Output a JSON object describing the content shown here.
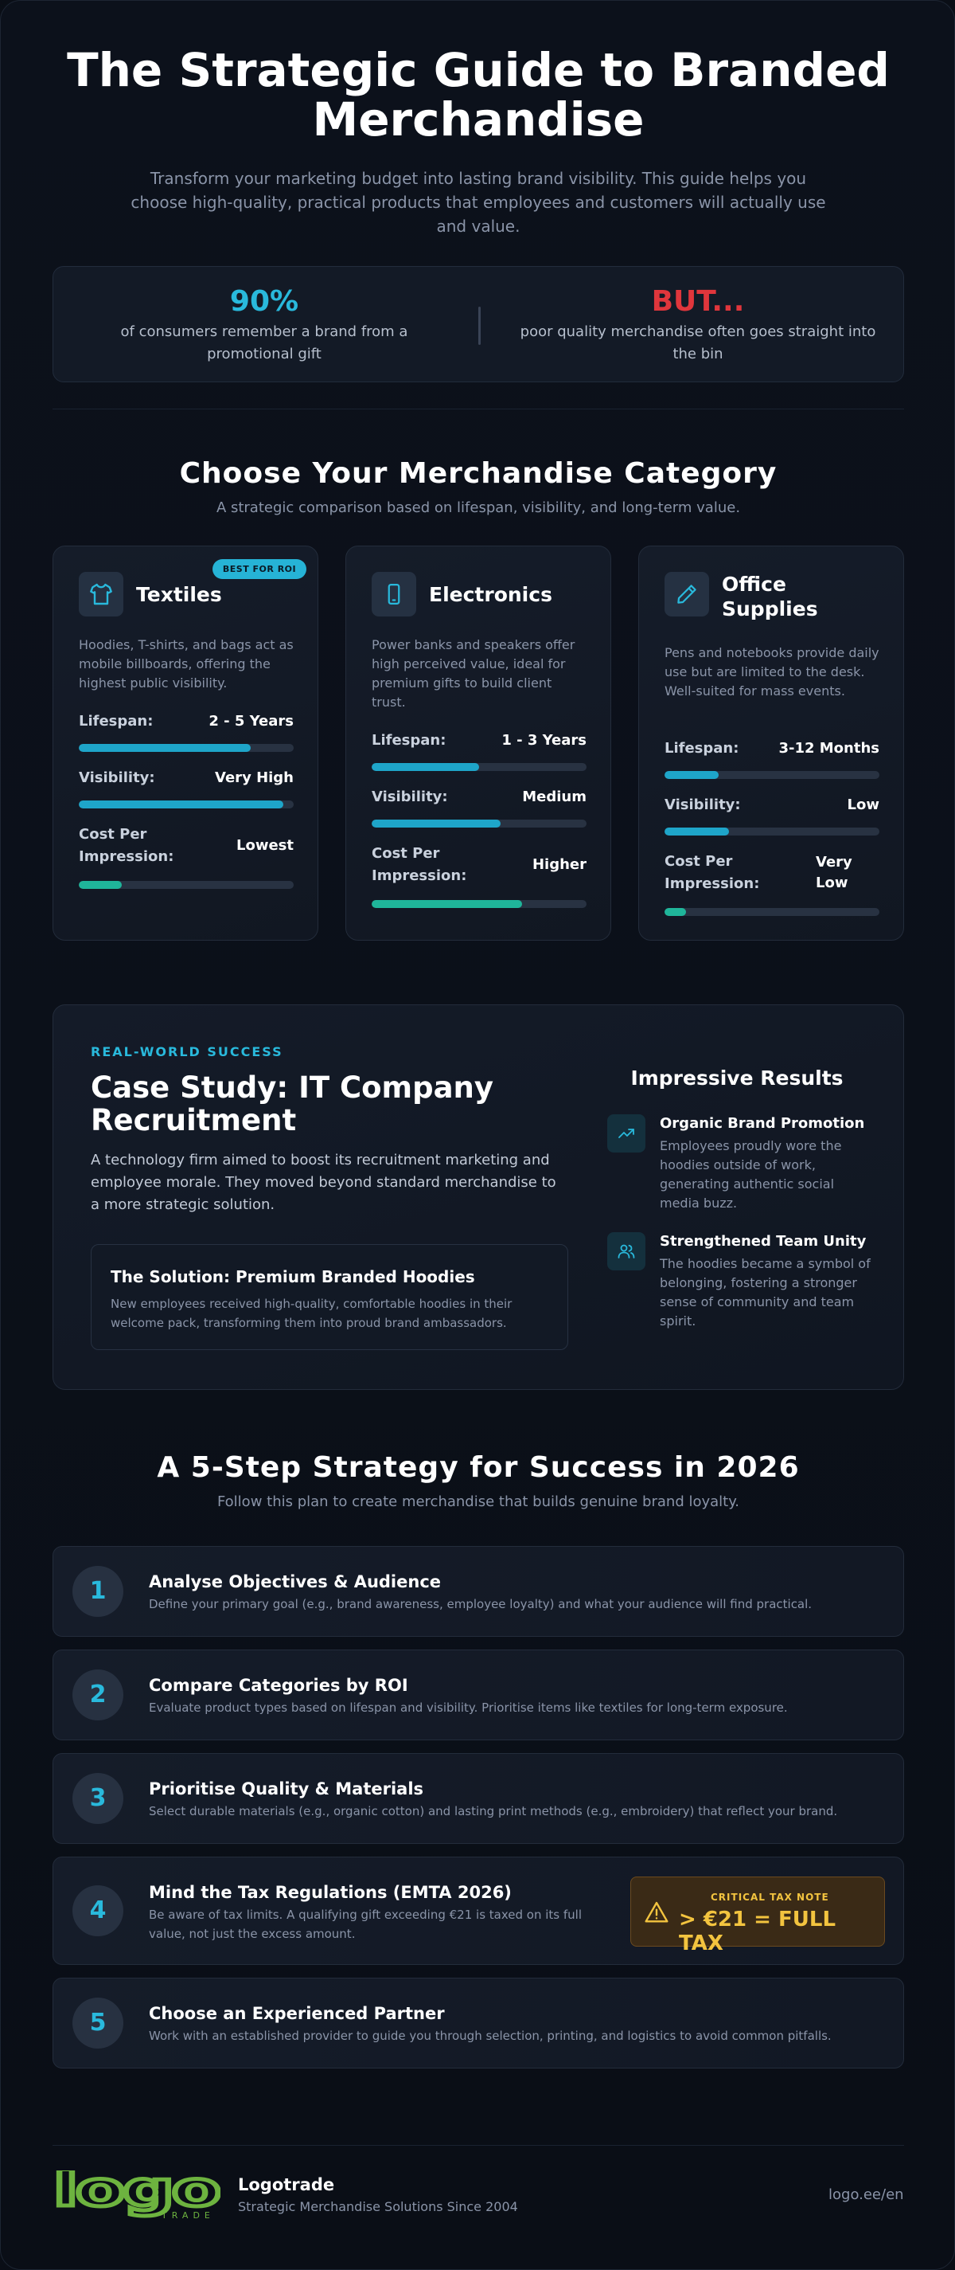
{
  "hero": {
    "title_line1": "The Strategic Guide to Branded",
    "title_line2": "Merchandise",
    "subtitle": "Transform your marketing budget into lasting brand visibility. This guide helps you choose high-quality, practical products that employees and customers will actually use and value."
  },
  "stats": [
    {
      "value": "90%",
      "text": "of consumers remember a brand from a promotional gift",
      "color": "#29b9dc"
    },
    {
      "value": "BUT...",
      "text": "poor quality merchandise often goes straight into the bin",
      "color": "#e0363c"
    }
  ],
  "categories_section": {
    "title": "Choose Your Merchandise Category",
    "subtitle": "A strategic comparison based on lifespan, visibility, and long-term value."
  },
  "categories": [
    {
      "icon": "tshirt-icon",
      "name": "Textiles",
      "badge": "BEST FOR ROI",
      "description": "Hoodies, T-shirts, and bags act as mobile billboards, offering the highest public visibility.",
      "metrics": [
        {
          "label": "Lifespan:",
          "value": "2 - 5 Years",
          "level": 0.8
        },
        {
          "label": "Visibility:",
          "value": "Very High",
          "level": 0.95
        },
        {
          "label": "Cost Per Impression:",
          "value": "Lowest",
          "level": 0.2
        }
      ]
    },
    {
      "icon": "phone-icon",
      "name": "Electronics",
      "badge": "",
      "description": "Power banks and speakers offer high perceived value, ideal for premium gifts to build client trust.",
      "metrics": [
        {
          "label": "Lifespan:",
          "value": "1 - 3 Years",
          "level": 0.5
        },
        {
          "label": "Visibility:",
          "value": "Medium",
          "level": 0.6
        },
        {
          "label": "Cost Per Impression:",
          "value": "Higher",
          "level": 0.7
        }
      ]
    },
    {
      "icon": "pen-icon",
      "name": "Office Supplies",
      "badge": "",
      "description": "Pens and notebooks provide daily use but are limited to the desk. Well-suited for mass events.",
      "metrics": [
        {
          "label": "Lifespan:",
          "value": "3-12 Months",
          "level": 0.25
        },
        {
          "label": "Visibility:",
          "value": "Low",
          "level": 0.3
        },
        {
          "label": "Cost Per Impression:",
          "value": "Very Low",
          "level": 0.1
        }
      ]
    }
  ],
  "case_study": {
    "kicker": "REAL-WORLD SUCCESS",
    "title": "Case Study: IT Company Recruitment",
    "text": "A technology firm aimed to boost its recruitment marketing and employee morale. They moved beyond standard merchandise to a more strategic solution.",
    "solution_title": "The Solution: Premium Branded Hoodies",
    "solution_text": "New employees received high-quality, comfortable hoodies in their welcome pack, transforming them into proud brand ambassadors.",
    "results_title": "Impressive Results",
    "results": [
      {
        "icon": "trending-up-icon",
        "title": "Organic Brand Promotion",
        "text": "Employees proudly wore the hoodies outside of work, generating authentic social media buzz."
      },
      {
        "icon": "users-icon",
        "title": "Strengthened Team Unity",
        "text": "The hoodies became a symbol of belonging, fostering a stronger sense of community and team spirit."
      }
    ]
  },
  "steps_section": {
    "title": "A 5-Step Strategy for Success in 2026",
    "subtitle": "Follow this plan to create merchandise that builds genuine brand loyalty."
  },
  "steps": [
    {
      "number": "1",
      "title": "Analyse Objectives & Audience",
      "text": "Define your primary goal (e.g., brand awareness, employee loyalty) and what your audience will find practical."
    },
    {
      "number": "2",
      "title": "Compare Categories by ROI",
      "text": "Evaluate product types based on lifespan and visibility. Prioritise items like textiles for long-term exposure."
    },
    {
      "number": "3",
      "title": "Prioritise Quality & Materials",
      "text": "Select durable materials (e.g., organic cotton) and lasting print methods (e.g., embroidery) that reflect your brand."
    },
    {
      "number": "4",
      "title": "Mind the Tax Regulations (EMTA 2026)",
      "text": "Be aware of tax limits. A qualifying gift exceeding €21 is taxed on its full value, not just the excess amount.",
      "note_label": "CRITICAL TAX NOTE",
      "note_value": "> €21 = FULL TAX"
    },
    {
      "number": "5",
      "title": "Choose an Experienced Partner",
      "text": "Work with an established provider to guide you through selection, printing, and logistics to avoid common pitfalls."
    }
  ],
  "footer": {
    "logo_word": "logo",
    "logo_sub": "TRADE",
    "name": "Logotrade",
    "tagline": "Strategic Merchandise Solutions Since 2004",
    "url": "logo.ee/en"
  },
  "colors": {
    "accent": "#29b9dc",
    "bar": "#1ea5c9",
    "green": "#1fb59a",
    "warning": "#f3c43f",
    "red": "#e0363c",
    "logo": "#6db33f"
  }
}
